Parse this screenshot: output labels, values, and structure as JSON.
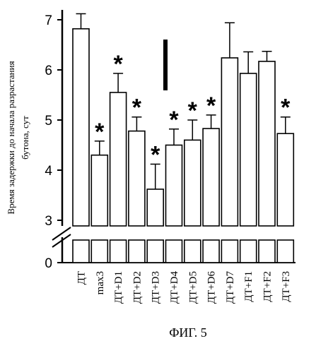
{
  "chart_data": {
    "type": "bar",
    "title": "",
    "ylabel_lines": [
      "Время задержки до начала разрастания",
      "бутона, сут"
    ],
    "yticks": [
      0,
      3,
      4,
      5,
      6,
      7
    ],
    "ylim": [
      0,
      7.2
    ],
    "axis_break": [
      0,
      3
    ],
    "categories": [
      "ДТ",
      "max3",
      "ДТ+D1",
      "ДТ+D2",
      "ДТ+D3",
      "ДТ+D4",
      "ДТ+D5",
      "ДТ+D6",
      "ДТ+D7",
      "ДТ+F1",
      "ДТ+F2",
      "ДТ+F3"
    ],
    "values": [
      6.82,
      4.3,
      5.55,
      4.78,
      3.62,
      4.5,
      4.6,
      4.83,
      6.24,
      5.93,
      6.17,
      4.73
    ],
    "errors": [
      0.3,
      0.28,
      0.38,
      0.28,
      0.5,
      0.32,
      0.4,
      0.27,
      0.7,
      0.43,
      0.2,
      0.33
    ],
    "significant": [
      false,
      true,
      true,
      true,
      true,
      true,
      true,
      true,
      false,
      false,
      false,
      true
    ],
    "significance_mark": "*",
    "grid": false,
    "legend": "none"
  },
  "figure_caption": "ФИГ. 5"
}
